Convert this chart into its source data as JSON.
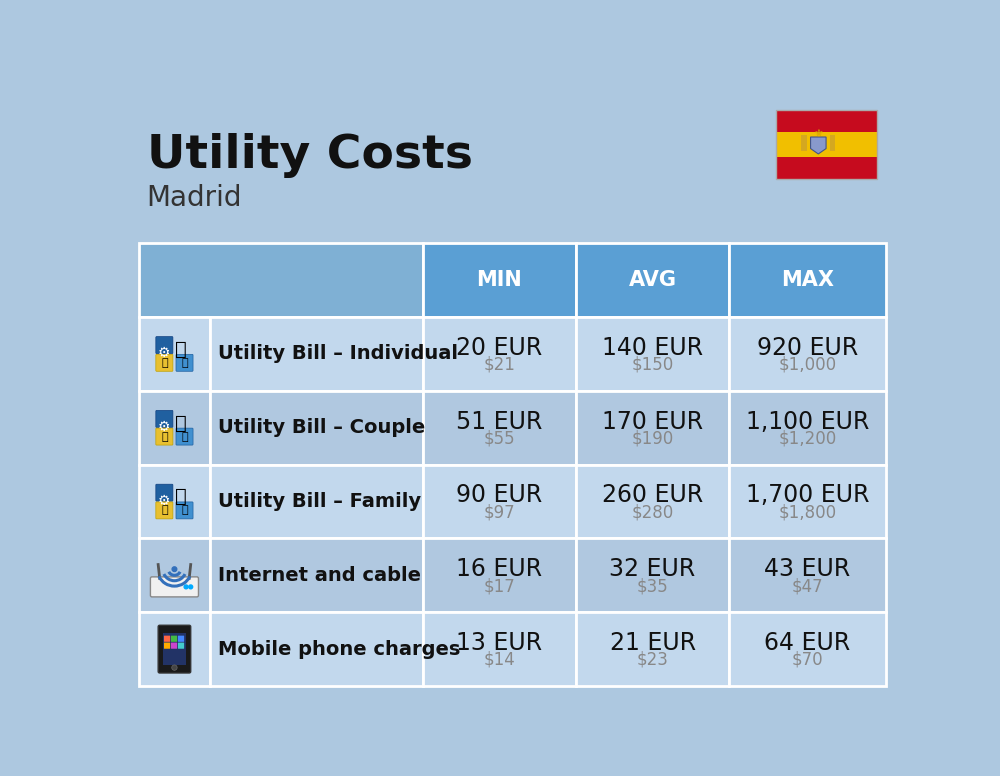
{
  "title": "Utility Costs",
  "subtitle": "Madrid",
  "background_color": "#adc8e0",
  "header_bg_color": "#5a9fd4",
  "row_bg_colors": [
    "#c2d8ed",
    "#b0c8e0"
  ],
  "header_text_color": "#ffffff",
  "header_labels": [
    "MIN",
    "AVG",
    "MAX"
  ],
  "rows": [
    {
      "label": "Utility Bill – Individual",
      "min_eur": "20 EUR",
      "min_usd": "$21",
      "avg_eur": "140 EUR",
      "avg_usd": "$150",
      "max_eur": "920 EUR",
      "max_usd": "$1,000"
    },
    {
      "label": "Utility Bill – Couple",
      "min_eur": "51 EUR",
      "min_usd": "$55",
      "avg_eur": "170 EUR",
      "avg_usd": "$190",
      "max_eur": "1,100 EUR",
      "max_usd": "$1,200"
    },
    {
      "label": "Utility Bill – Family",
      "min_eur": "90 EUR",
      "min_usd": "$97",
      "avg_eur": "260 EUR",
      "avg_usd": "$280",
      "max_eur": "1,700 EUR",
      "max_usd": "$1,800"
    },
    {
      "label": "Internet and cable",
      "min_eur": "16 EUR",
      "min_usd": "$17",
      "avg_eur": "32 EUR",
      "avg_usd": "$35",
      "max_eur": "43 EUR",
      "max_usd": "$47"
    },
    {
      "label": "Mobile phone charges",
      "min_eur": "13 EUR",
      "min_usd": "$14",
      "avg_eur": "21 EUR",
      "avg_usd": "$23",
      "max_eur": "64 EUR",
      "max_usd": "$70"
    }
  ],
  "title_fontsize": 34,
  "subtitle_fontsize": 20,
  "header_fontsize": 15,
  "label_fontsize": 14,
  "value_fontsize": 17,
  "subvalue_fontsize": 12,
  "flag_red": "#c60b1e",
  "flag_yellow": "#f1bf00"
}
